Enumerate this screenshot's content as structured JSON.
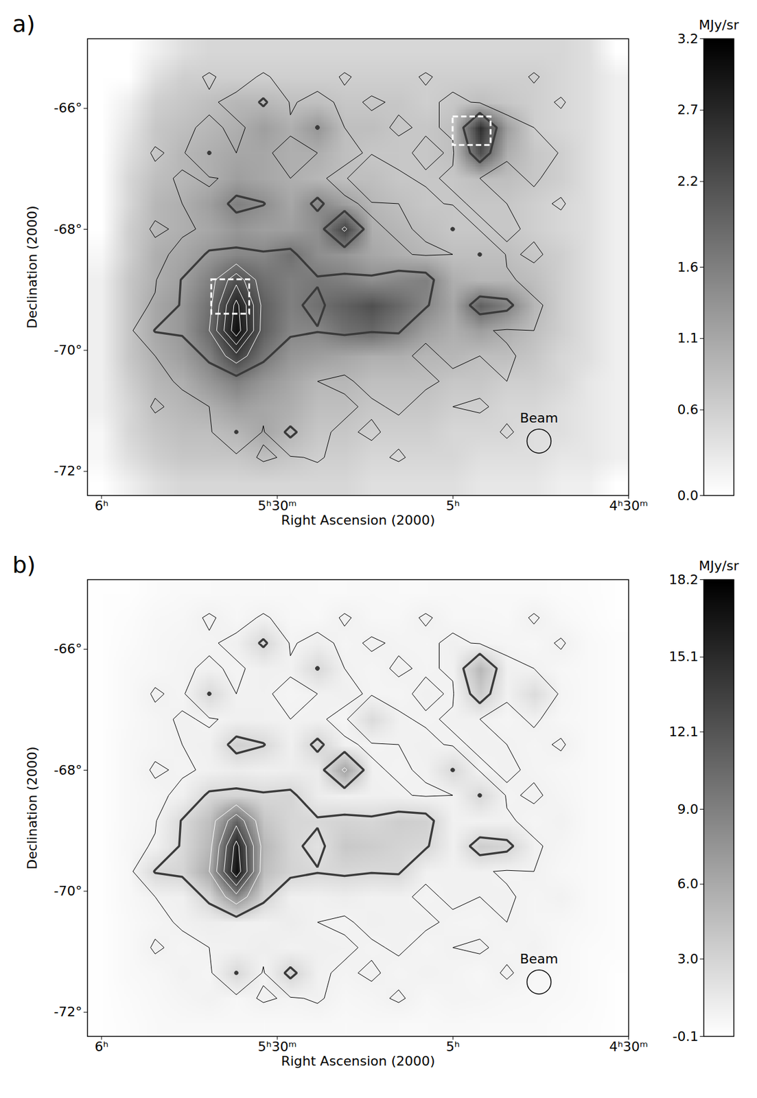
{
  "chart_data": [
    {
      "type": "heatmap",
      "title": "a)",
      "x_label": "Right Ascension (2000)",
      "y_label": "Declination (2000)",
      "xlim": [
        6.04,
        4.5
      ],
      "ylim": [
        -72.4,
        -64.85
      ],
      "xticks": [
        {
          "value": 6,
          "label": "6ʰ"
        },
        {
          "value": 5.5,
          "label": "5ʰ30ᵐ"
        },
        {
          "value": 5,
          "label": "5ʰ"
        },
        {
          "value": 4.5,
          "label": "4ʰ30ᵐ"
        }
      ],
      "yticks": [
        {
          "value": -66,
          "label": "-66°"
        },
        {
          "value": -68,
          "label": "-68°"
        },
        {
          "value": -70,
          "label": "-70°"
        },
        {
          "value": -72,
          "label": "-72°"
        }
      ],
      "colorbar": {
        "label": "MJy/sr",
        "range": [
          0,
          3.2
        ],
        "ticks": [
          {
            "value": 0,
            "label": "0.0"
          },
          0.6,
          1.1,
          1.6,
          2.2,
          2.7,
          3.2
        ]
      },
      "contour_levels": [
        0.8,
        6,
        9,
        12,
        15
      ],
      "outline_level": 2.5,
      "boxes": [
        {
          "x": [
            5.0,
            4.892
          ],
          "y": [
            -66.14,
            -66.61
          ]
        },
        {
          "x": [
            5.687,
            5.579
          ],
          "y": [
            -68.83,
            -69.4
          ]
        }
      ],
      "beam": {
        "label": "Beam",
        "x": 4.755,
        "y": -71.5
      },
      "cells": [
        [
          0,
          0,
          0.2,
          0.4,
          0.5,
          0.5,
          0.5,
          0.5,
          0.5,
          0.5,
          0.5,
          0.5,
          0.5,
          0.5,
          0.5,
          0.5,
          0.5,
          0.5,
          0.4,
          0
        ],
        [
          0,
          0,
          0.4,
          0.6,
          0.6,
          0.6,
          0.6,
          0.6,
          0.6,
          0.6,
          0.6,
          0.6,
          0.6,
          0.6,
          0.6,
          0.6,
          0.6,
          0.5,
          0.4,
          0.2
        ],
        [
          0,
          0.2,
          0.6,
          0.7,
          0.8,
          0.9,
          0.9,
          0.8,
          0.8,
          0.7,
          0.7,
          0.7,
          0.6,
          0.7,
          0.8,
          0.7,
          0.6,
          0.5,
          0.4,
          0.2
        ],
        [
          0,
          0.3,
          0.7,
          0.8,
          0.9,
          1.0,
          1.2,
          1.0,
          1.3,
          0.8,
          0.8,
          0.7,
          0.7,
          0.8,
          2.6,
          1.2,
          0.6,
          0.5,
          0.4,
          0.2
        ],
        [
          0,
          0.4,
          0.7,
          0.9,
          1.0,
          1.1,
          1.1,
          1.0,
          1.0,
          0.8,
          0.7,
          0.7,
          0.7,
          0.8,
          2.2,
          1.0,
          0.7,
          0.6,
          0.4,
          0.2
        ],
        [
          0,
          0.5,
          0.8,
          0.9,
          1.0,
          1.2,
          1.1,
          1.0,
          0.9,
          0.8,
          0.8,
          0.7,
          0.7,
          0.7,
          0.8,
          0.8,
          0.7,
          0.6,
          0.4,
          0.2
        ],
        [
          0,
          0.5,
          0.9,
          1.0,
          1.2,
          1.6,
          1.4,
          1.1,
          1.5,
          1.2,
          0.9,
          0.8,
          0.7,
          0.7,
          0.7,
          0.7,
          0.6,
          0.5,
          0.4,
          0.2
        ],
        [
          0,
          0.6,
          0.9,
          1.0,
          1.1,
          1.3,
          1.2,
          1.2,
          1.4,
          2.4,
          1.0,
          0.9,
          0.8,
          0.7,
          0.7,
          0.7,
          0.6,
          0.5,
          0.4,
          0.2
        ],
        [
          0.1,
          0.6,
          1.0,
          1.1,
          1.3,
          1.5,
          1.5,
          1.8,
          1.4,
          1.3,
          1.1,
          1.0,
          0.9,
          0.8,
          0.8,
          0.8,
          0.7,
          0.6,
          0.4,
          0.2
        ],
        [
          0.2,
          0.7,
          1.0,
          1.2,
          1.6,
          2.2,
          1.8,
          1.6,
          1.7,
          1.6,
          1.4,
          1.5,
          1.6,
          1.0,
          0.9,
          0.9,
          0.8,
          0.6,
          0.4,
          0.2
        ],
        [
          0.2,
          0.7,
          1.1,
          1.3,
          1.8,
          2.8,
          2.0,
          1.6,
          1.8,
          2.0,
          2.2,
          1.9,
          1.5,
          1.1,
          2.0,
          1.6,
          0.9,
          0.6,
          0.4,
          0.2
        ],
        [
          0.2,
          0.7,
          1.1,
          1.3,
          1.9,
          3.0,
          2.0,
          1.5,
          1.5,
          1.8,
          1.9,
          1.6,
          1.2,
          1.0,
          1.2,
          1.0,
          0.8,
          0.6,
          0.4,
          0.2
        ],
        [
          0.2,
          0.7,
          1.0,
          1.2,
          1.6,
          2.4,
          1.7,
          1.3,
          1.2,
          1.1,
          1.0,
          1.0,
          0.9,
          0.9,
          0.8,
          0.8,
          0.7,
          0.5,
          0.4,
          0.2
        ],
        [
          0.2,
          0.6,
          0.9,
          1.0,
          1.3,
          1.6,
          1.3,
          1.1,
          0.9,
          0.9,
          0.8,
          0.8,
          0.8,
          0.7,
          0.7,
          0.6,
          0.6,
          0.5,
          0.3,
          0.2
        ],
        [
          0.2,
          0.5,
          0.8,
          0.9,
          1.0,
          1.2,
          1.1,
          1.0,
          0.8,
          0.8,
          0.7,
          0.7,
          0.7,
          0.6,
          0.6,
          0.5,
          0.5,
          0.4,
          0.3,
          0.2
        ],
        [
          0.1,
          0.5,
          0.7,
          0.8,
          0.8,
          0.9,
          1.1,
          0.9,
          0.7,
          0.7,
          0.6,
          0.6,
          0.6,
          0.5,
          0.5,
          0.5,
          0.4,
          0.4,
          0.3,
          0.2
        ],
        [
          0.1,
          0.4,
          0.6,
          0.7,
          0.7,
          0.7,
          0.8,
          0.7,
          0.6,
          0.6,
          0.5,
          0.5,
          0.5,
          0.5,
          0.4,
          0.4,
          0.4,
          0.3,
          0.3,
          0.2
        ],
        [
          0,
          0.2,
          0.4,
          0.5,
          0.5,
          0.5,
          0.5,
          0.5,
          0.5,
          0.5,
          0.4,
          0.4,
          0.4,
          0.4,
          0.3,
          0.3,
          0.3,
          0.2,
          0.2,
          0
        ]
      ]
    },
    {
      "type": "heatmap",
      "title": "b)",
      "x_label": "Right Ascension (2000)",
      "y_label": "Declination (2000)",
      "xlim": [
        6.04,
        4.5
      ],
      "ylim": [
        -72.4,
        -64.85
      ],
      "xticks": [
        {
          "value": 6,
          "label": "6ʰ"
        },
        {
          "value": 5.5,
          "label": "5ʰ30ᵐ"
        },
        {
          "value": 5,
          "label": "5ʰ"
        },
        {
          "value": 4.5,
          "label": "4ʰ30ᵐ"
        }
      ],
      "yticks": [
        {
          "value": -66,
          "label": "-66°"
        },
        {
          "value": -68,
          "label": "-68°"
        },
        {
          "value": -70,
          "label": "-70°"
        },
        {
          "value": -72,
          "label": "-72°"
        }
      ],
      "colorbar": {
        "label": "MJy/sr",
        "range": [
          -0.1,
          18.2
        ],
        "ticks": [
          -0.1,
          {
            "value": 3,
            "label": "3.0"
          },
          {
            "value": 6,
            "label": "6.0"
          },
          {
            "value": 9,
            "label": "9.0"
          },
          12.1,
          15.1,
          18.2
        ]
      },
      "contour_levels": [
        0.8,
        6,
        9,
        12,
        15
      ],
      "outline_level": 2.5,
      "beam": {
        "label": "Beam",
        "x": 4.755,
        "y": -71.5
      },
      "cells": [
        [
          0,
          0,
          0.2,
          0.3,
          0.3,
          0.4,
          0.3,
          0.4,
          0.3,
          0.3,
          0.4,
          0.3,
          0.3,
          0.4,
          0.3,
          0.3,
          0.3,
          0.2,
          0.1,
          0
        ],
        [
          0,
          0.1,
          0.4,
          0.5,
          0.9,
          0.5,
          0.9,
          0.5,
          0.4,
          0.9,
          0.5,
          0.5,
          0.9,
          0.5,
          0.5,
          0.4,
          0.9,
          0.4,
          0.2,
          0
        ],
        [
          0,
          0.2,
          0.5,
          0.6,
          0.7,
          1.0,
          2.8,
          0.7,
          1.1,
          0.6,
          0.9,
          0.7,
          0.6,
          1.0,
          0.7,
          0.6,
          0.5,
          0.9,
          0.3,
          0.1
        ],
        [
          0,
          0.3,
          0.5,
          0.7,
          0.9,
          0.7,
          1.0,
          0.9,
          2.6,
          0.8,
          0.6,
          0.9,
          0.7,
          0.9,
          5.0,
          1.0,
          0.8,
          0.5,
          0.3,
          0.1
        ],
        [
          0,
          0.3,
          0.9,
          0.6,
          2.6,
          0.8,
          0.9,
          0.6,
          0.8,
          1.0,
          0.7,
          0.6,
          1.0,
          0.7,
          3.5,
          0.9,
          2.4,
          0.6,
          0.3,
          0.1
        ],
        [
          0,
          0.3,
          0.6,
          0.9,
          0.7,
          1.0,
          0.9,
          0.8,
          0.9,
          0.6,
          2.5,
          0.9,
          0.7,
          0.9,
          0.8,
          0.6,
          0.9,
          0.5,
          0.3,
          0.1
        ],
        [
          0,
          0.4,
          0.6,
          0.8,
          1.0,
          3.2,
          2.6,
          1.0,
          3.0,
          0.9,
          0.7,
          0.8,
          1.0,
          0.7,
          0.9,
          0.8,
          0.6,
          0.9,
          0.3,
          0.1
        ],
        [
          0,
          0.4,
          0.9,
          0.7,
          0.9,
          1.2,
          1.0,
          1.1,
          1.3,
          6.5,
          0.9,
          0.7,
          0.9,
          2.6,
          0.7,
          0.9,
          0.7,
          0.5,
          0.3,
          0.1
        ],
        [
          0,
          0.4,
          0.6,
          1.0,
          2.8,
          3.0,
          2.7,
          2.9,
          1.2,
          0.9,
          1.0,
          0.9,
          0.7,
          0.8,
          2.6,
          0.7,
          0.9,
          0.6,
          0.3,
          0.1
        ],
        [
          0,
          0.4,
          0.7,
          2.6,
          4.5,
          11.0,
          4.0,
          2.8,
          2.7,
          3.0,
          2.8,
          3.4,
          3.2,
          0.9,
          0.8,
          0.9,
          0.6,
          0.8,
          0.3,
          0.1
        ],
        [
          0,
          0.5,
          0.9,
          2.7,
          5.0,
          16.0,
          5.0,
          2.9,
          2.0,
          3.8,
          3.5,
          3.0,
          2.7,
          1.0,
          3.4,
          3.0,
          0.9,
          0.6,
          0.3,
          0.1
        ],
        [
          0,
          0.4,
          2.6,
          2.9,
          6.0,
          17.0,
          4.5,
          3.0,
          2.6,
          2.8,
          2.6,
          2.7,
          0.9,
          0.8,
          0.9,
          0.7,
          0.8,
          0.5,
          0.3,
          0.1
        ],
        [
          0,
          0.4,
          0.8,
          1.0,
          3.0,
          8.0,
          3.0,
          1.0,
          0.9,
          1.1,
          0.8,
          0.9,
          0.7,
          0.9,
          0.8,
          0.9,
          0.6,
          0.8,
          0.3,
          0.1
        ],
        [
          0,
          0.3,
          0.6,
          0.9,
          1.1,
          1.0,
          0.9,
          1.2,
          0.8,
          0.7,
          1.0,
          0.8,
          0.9,
          0.7,
          0.6,
          0.8,
          0.6,
          0.5,
          0.3,
          0.1
        ],
        [
          0,
          0.3,
          0.9,
          0.6,
          0.8,
          0.9,
          1.1,
          0.8,
          1.0,
          0.9,
          0.7,
          0.9,
          0.6,
          0.8,
          0.9,
          0.6,
          0.8,
          0.4,
          0.2,
          0.1
        ],
        [
          0,
          0.3,
          0.5,
          0.8,
          0.6,
          2.6,
          0.7,
          3.0,
          0.9,
          0.7,
          0.9,
          0.6,
          0.8,
          0.7,
          0.5,
          0.9,
          0.5,
          0.4,
          0.2,
          0
        ],
        [
          0,
          0.2,
          0.4,
          0.6,
          0.8,
          0.5,
          0.9,
          0.7,
          0.9,
          0.5,
          0.6,
          0.9,
          0.5,
          0.7,
          0.6,
          0.5,
          0.4,
          0.3,
          0.2,
          0
        ],
        [
          0,
          0.1,
          0.3,
          0.4,
          0.4,
          0.4,
          0.3,
          0.4,
          0.4,
          0.3,
          0.4,
          0.3,
          0.3,
          0.4,
          0.3,
          0.3,
          0.3,
          0.2,
          0.1,
          0
        ]
      ]
    }
  ]
}
